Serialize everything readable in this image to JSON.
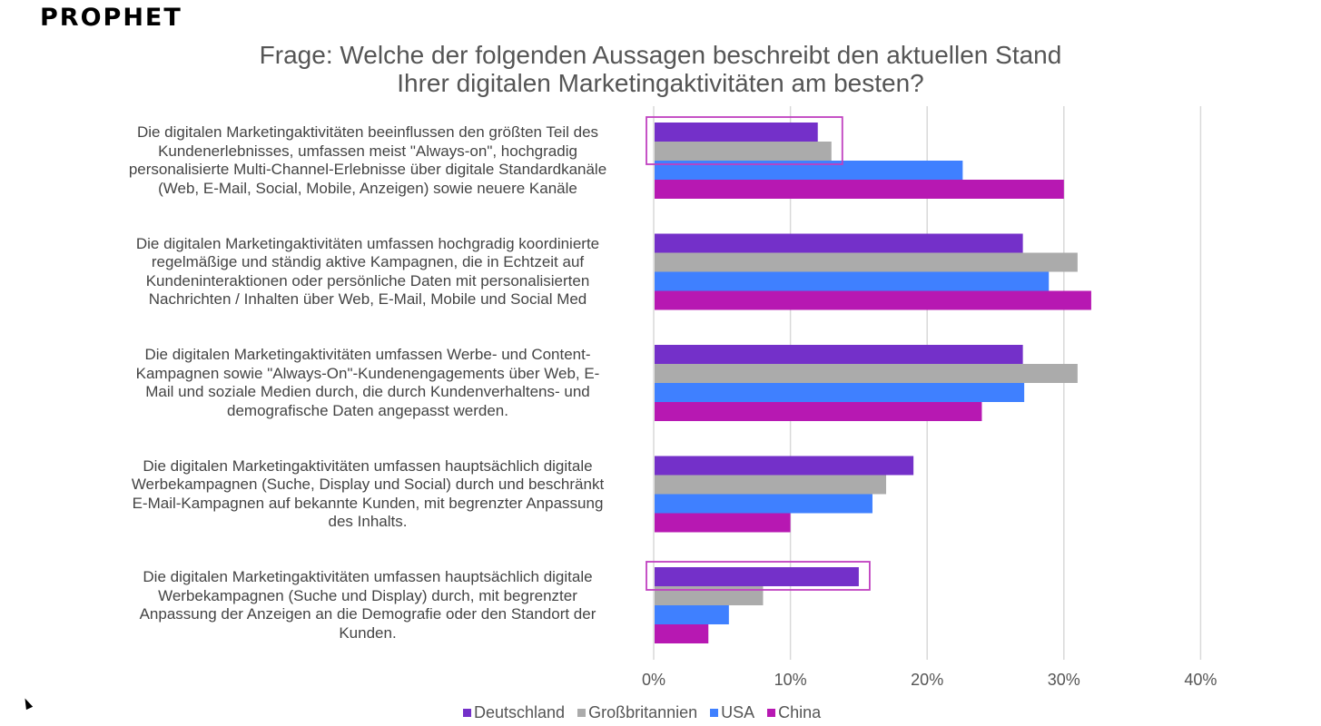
{
  "logo": "PROPHET",
  "chart_data": {
    "type": "bar",
    "orientation": "horizontal",
    "title": "Frage: Welche der folgenden Aussagen beschreibt den aktuellen Stand Ihrer digitalen Marketingaktivitäten am besten?",
    "title_lines": [
      "Frage: Welche der folgenden Aussagen beschreibt den aktuellen Stand",
      "Ihrer digitalen Marketingaktivitäten am besten?"
    ],
    "categories": [
      "Die digitalen Marketingaktivitäten beeinflussen den größten Teil des Kundenerlebnisses, umfassen meist \"Always-on\", hochgradig personalisierte Multi-Channel-Erlebnisse über digitale Standardkanäle (Web, E-Mail, Social, Mobile, Anzeigen) sowie neuere Kanäle",
      "Die digitalen Marketingaktivitäten umfassen hochgradig koordinierte regelmäßige und ständig aktive Kampagnen, die in Echtzeit auf Kundeninteraktionen oder persönliche Daten mit personalisierten Nachrichten / Inhalten über Web, E-Mail, Mobile und Social Med",
      "Die digitalen Marketingaktivitäten umfassen Werbe- und Content-Kampagnen sowie \"Always-On\"-Kundenengagements über Web, E-Mail und soziale Medien durch, die durch Kundenverhaltens- und demografische Daten angepasst werden.",
      "Die digitalen Marketingaktivitäten umfassen hauptsächlich digitale Werbekampagnen (Suche, Display und Social) durch und beschränkt E-Mail-Kampagnen auf bekannte Kunden, mit begrenzter Anpassung des Inhalts.",
      "Die digitalen Marketingaktivitäten umfassen hauptsächlich digitale Werbekampagnen (Suche und Display) durch, mit begrenzter Anpassung der Anzeigen an die Demografie oder den Standort der Kunden."
    ],
    "category_lines": [
      [
        "Die digitalen Marketingaktivitäten beeinflussen den größten Teil des",
        "Kundenerlebnisses, umfassen meist \"Always-on\", hochgradig",
        "personalisierte Multi-Channel-Erlebnisse über digitale Standardkanäle",
        "(Web, E-Mail, Social, Mobile, Anzeigen) sowie neuere Kanäle"
      ],
      [
        "Die digitalen Marketingaktivitäten umfassen hochgradig koordinierte",
        "regelmäßige und ständig aktive Kampagnen, die in Echtzeit auf",
        "Kundeninteraktionen oder persönliche Daten mit personalisierten",
        "Nachrichten / Inhalten über Web, E-Mail, Mobile und Social Med"
      ],
      [
        "Die digitalen Marketingaktivitäten umfassen Werbe- und Content-",
        "Kampagnen sowie \"Always-On\"-Kundenengagements über Web, E-",
        "Mail und soziale Medien durch, die durch Kundenverhaltens- und",
        "demografische Daten angepasst werden."
      ],
      [
        "Die digitalen Marketingaktivitäten umfassen hauptsächlich digitale",
        "Werbekampagnen (Suche, Display und Social) durch und beschränkt",
        "E-Mail-Kampagnen auf bekannte Kunden, mit begrenzter Anpassung",
        "des Inhalts."
      ],
      [
        "Die digitalen Marketingaktivitäten umfassen hauptsächlich digitale",
        "Werbekampagnen (Suche und Display) durch, mit begrenzter",
        "Anpassung der Anzeigen an die Demografie oder den Standort der",
        "Kunden."
      ]
    ],
    "series": [
      {
        "name": "Deutschland",
        "color": "#7430C9",
        "values": [
          12,
          27,
          27,
          19,
          15
        ]
      },
      {
        "name": "Großbritannien",
        "color": "#ABABAB",
        "values": [
          13,
          31,
          31,
          17,
          8
        ]
      },
      {
        "name": "USA",
        "color": "#3F80FF",
        "values": [
          22.6,
          28.9,
          27.1,
          16,
          5.5
        ]
      },
      {
        "name": "China",
        "color": "#B718B2",
        "values": [
          30,
          32,
          24,
          10,
          4
        ]
      }
    ],
    "xlabel": "",
    "ylabel": "",
    "xlim": [
      0,
      40
    ],
    "x_ticks": [
      0,
      10,
      20,
      30,
      40
    ],
    "x_tick_labels": [
      "0%",
      "10%",
      "20%",
      "30%",
      "40%"
    ],
    "grid": true,
    "legend_position": "bottom",
    "highlights": [
      {
        "category_index": 0,
        "series": [
          "Deutschland",
          "Großbritannien"
        ],
        "color": "#C040C0"
      },
      {
        "category_index": 4,
        "series": [
          "Deutschland"
        ],
        "color": "#C040C0"
      }
    ]
  }
}
